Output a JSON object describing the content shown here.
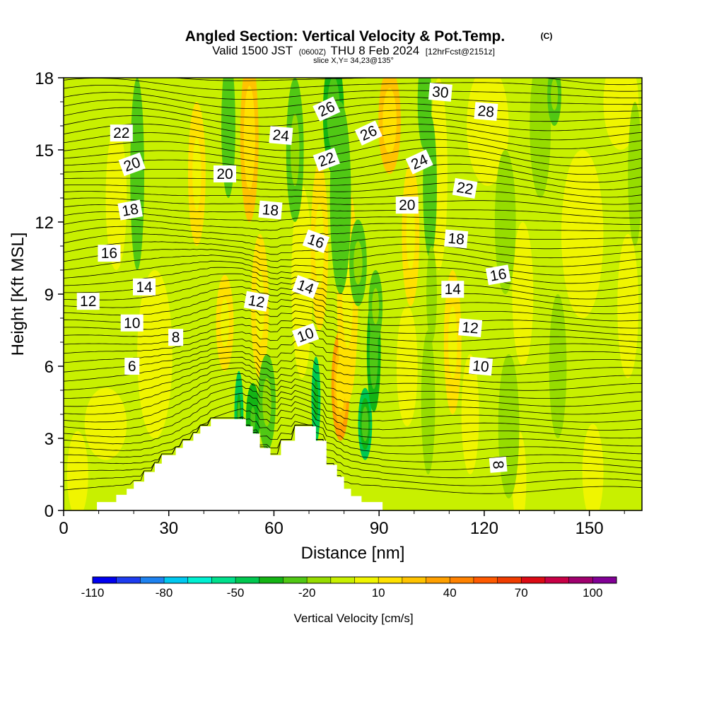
{
  "chart_data": {
    "type": "heatmap",
    "title": "Angled Section: Vertical Velocity & Pot.Temp.",
    "title_mark": "(C)",
    "subtitle": {
      "prefix": "Valid 1500 JST",
      "utc": "(0600Z)",
      "date": "THU 8 Feb 2024",
      "forecast": "[12hrFcst@2151z]"
    },
    "slice_label": "slice X,Y= 34,23@135°",
    "xlabel": "Distance [nm]",
    "ylabel": "Height [Kft MSL]",
    "xlim": [
      0,
      165
    ],
    "ylim": [
      0,
      18
    ],
    "xticks": [
      "0",
      "30",
      "60",
      "90",
      "120",
      "150"
    ],
    "yticks": [
      "0",
      "3",
      "6",
      "9",
      "12",
      "15",
      "18"
    ],
    "xtick_values": [
      0,
      30,
      60,
      90,
      120,
      150
    ],
    "ytick_values": [
      0,
      3,
      6,
      9,
      12,
      15,
      18
    ],
    "colorbar": {
      "label": "Vertical Velocity [cm/s]",
      "min": -110,
      "max": 110,
      "step": 10,
      "tick_labels": [
        "-110",
        "-80",
        "-50",
        "-20",
        "10",
        "40",
        "70",
        "100"
      ],
      "tick_values": [
        -110,
        -80,
        -50,
        -20,
        10,
        40,
        70,
        100
      ],
      "colors": [
        "#0000f0",
        "#1e3cf0",
        "#1e82f0",
        "#00c8f0",
        "#00f0d2",
        "#00e08c",
        "#00c850",
        "#14b414",
        "#50c814",
        "#96dc00",
        "#c8f000",
        "#f0f500",
        "#ffe100",
        "#ffc300",
        "#ffa000",
        "#ff8200",
        "#ff5a00",
        "#f03c00",
        "#dc0a14",
        "#c80046",
        "#a0006e",
        "#820096"
      ]
    },
    "fill_colors": {
      "near_zero": "#c8f000",
      "weak_up": "#f0f500",
      "up": "#ffe100",
      "strong_up": "#ffc300",
      "stronger_up": "#ffa000",
      "weak_down": "#96dc00",
      "down": "#50c814",
      "strong_down": "#14b414",
      "stronger_down": "#00c850",
      "terrain": "#ffffff"
    },
    "updrafts": [
      {
        "x": 4,
        "y": 1.5,
        "sx": 3,
        "sy": 1.8,
        "v": 8
      },
      {
        "x": 12,
        "y": 3.6,
        "sx": 6,
        "sy": 1.5,
        "v": 10
      },
      {
        "x": 15,
        "y": 13,
        "sx": 3,
        "sy": 3,
        "v": 8
      },
      {
        "x": 26,
        "y": 6.5,
        "sx": 5,
        "sy": 3.5,
        "v": 8
      },
      {
        "x": 38,
        "y": 14,
        "sx": 2.5,
        "sy": 3,
        "v": 18
      },
      {
        "x": 46,
        "y": 7.8,
        "sx": 2.5,
        "sy": 2,
        "v": 18
      },
      {
        "x": 53,
        "y": 15.5,
        "sx": 2.6,
        "sy": 3.5,
        "v": 34
      },
      {
        "x": 56,
        "y": 8.5,
        "sx": 2.5,
        "sy": 3,
        "v": 15
      },
      {
        "x": 68,
        "y": 9.5,
        "sx": 3,
        "sy": 4,
        "v": 12
      },
      {
        "x": 73,
        "y": 11,
        "sx": 2.5,
        "sy": 3.5,
        "v": 18
      },
      {
        "x": 79,
        "y": 5.2,
        "sx": 2.6,
        "sy": 2.3,
        "v": 42
      },
      {
        "x": 81,
        "y": 9,
        "sx": 3,
        "sy": 4.5,
        "v": 18
      },
      {
        "x": 93,
        "y": 16.2,
        "sx": 3.2,
        "sy": 2.2,
        "v": 34
      },
      {
        "x": 99,
        "y": 11.5,
        "sx": 2.5,
        "sy": 3,
        "v": 15
      },
      {
        "x": 98,
        "y": 6,
        "sx": 3,
        "sy": 2.5,
        "v": 10
      },
      {
        "x": 107,
        "y": 14,
        "sx": 2.5,
        "sy": 4,
        "v": 14
      },
      {
        "x": 111,
        "y": 7,
        "sx": 2.5,
        "sy": 3,
        "v": 15
      },
      {
        "x": 116,
        "y": 4,
        "sx": 2.5,
        "sy": 2.5,
        "v": 10
      },
      {
        "x": 121,
        "y": 16,
        "sx": 6,
        "sy": 2.5,
        "v": 10
      },
      {
        "x": 130,
        "y": 1.3,
        "sx": 2,
        "sy": 2,
        "v": 8
      },
      {
        "x": 131,
        "y": 9,
        "sx": 3,
        "sy": 3,
        "v": 6
      },
      {
        "x": 148,
        "y": 11.5,
        "sx": 6,
        "sy": 3.5,
        "v": 12
      },
      {
        "x": 151,
        "y": 1.6,
        "sx": 3,
        "sy": 2,
        "v": 10
      },
      {
        "x": 159,
        "y": 17,
        "sx": 5,
        "sy": 2,
        "v": 10
      },
      {
        "x": 161,
        "y": 8.5,
        "sx": 3,
        "sy": 3,
        "v": 8
      }
    ],
    "downdrafts": [
      {
        "x": 21,
        "y": 14,
        "sx": 2,
        "sy": 4,
        "v": -22
      },
      {
        "x": 47,
        "y": 16,
        "sx": 2,
        "sy": 3,
        "v": -22
      },
      {
        "x": 50,
        "y": 4,
        "sx": 1.3,
        "sy": 1.8,
        "v": -48
      },
      {
        "x": 54,
        "y": 3.8,
        "sx": 2,
        "sy": 1.5,
        "v": -38
      },
      {
        "x": 58,
        "y": 4.5,
        "sx": 2.5,
        "sy": 2,
        "v": -20
      },
      {
        "x": 66,
        "y": 15,
        "sx": 2.5,
        "sy": 3,
        "v": -20
      },
      {
        "x": 72,
        "y": 4.6,
        "sx": 1.3,
        "sy": 1.8,
        "v": -55
      },
      {
        "x": 77,
        "y": 16.5,
        "sx": 3,
        "sy": 2.5,
        "v": -35
      },
      {
        "x": 79,
        "y": 13,
        "sx": 3,
        "sy": 4,
        "v": -25
      },
      {
        "x": 84,
        "y": 10.3,
        "sx": 2.5,
        "sy": 1.8,
        "v": -18
      },
      {
        "x": 86,
        "y": 3.6,
        "sx": 2,
        "sy": 1.5,
        "v": -40
      },
      {
        "x": 88.5,
        "y": 6.6,
        "sx": 2,
        "sy": 2.5,
        "v": -30
      },
      {
        "x": 89,
        "y": 8.5,
        "sx": 2,
        "sy": 1.5,
        "v": -20
      },
      {
        "x": 103,
        "y": 17,
        "sx": 2,
        "sy": 2,
        "v": -28
      },
      {
        "x": 104.5,
        "y": 13.5,
        "sx": 2,
        "sy": 3,
        "v": -25
      },
      {
        "x": 105,
        "y": 9,
        "sx": 1.5,
        "sy": 2,
        "v": -12
      },
      {
        "x": 104,
        "y": 4.5,
        "sx": 2,
        "sy": 3,
        "v": -6
      },
      {
        "x": 127,
        "y": 3.5,
        "sx": 3,
        "sy": 3,
        "v": -6
      },
      {
        "x": 126,
        "y": 12,
        "sx": 3,
        "sy": 3,
        "v": -6
      },
      {
        "x": 141,
        "y": 6,
        "sx": 2.5,
        "sy": 3,
        "v": -6
      },
      {
        "x": 136,
        "y": 16,
        "sx": 3,
        "sy": 3,
        "v": -6
      },
      {
        "x": 140,
        "y": 17.3,
        "sx": 2,
        "sy": 1.3,
        "v": -15
      },
      {
        "x": 163,
        "y": 14,
        "sx": 2,
        "sy": 3,
        "v": -6
      }
    ],
    "terrain_profile": [
      [
        0,
        0
      ],
      [
        9.5,
        0
      ],
      [
        9.5,
        0.35
      ],
      [
        15,
        0.35
      ],
      [
        15,
        0.65
      ],
      [
        18,
        0.65
      ],
      [
        18,
        0.9
      ],
      [
        20,
        0.9
      ],
      [
        20,
        1.2
      ],
      [
        23,
        1.2
      ],
      [
        23,
        1.6
      ],
      [
        26,
        1.6
      ],
      [
        26,
        1.95
      ],
      [
        28,
        1.95
      ],
      [
        28,
        2.3
      ],
      [
        32,
        2.3
      ],
      [
        32,
        2.6
      ],
      [
        34,
        2.6
      ],
      [
        34,
        2.9
      ],
      [
        37,
        2.9
      ],
      [
        37,
        3.2
      ],
      [
        39,
        3.2
      ],
      [
        39,
        3.5
      ],
      [
        42,
        3.5
      ],
      [
        42,
        3.8
      ],
      [
        52,
        3.8
      ],
      [
        52,
        3.5
      ],
      [
        54,
        3.5
      ],
      [
        54,
        3.2
      ],
      [
        56,
        3.2
      ],
      [
        56,
        2.6
      ],
      [
        59,
        2.6
      ],
      [
        59,
        2.3
      ],
      [
        62,
        2.3
      ],
      [
        62,
        2.9
      ],
      [
        66,
        2.9
      ],
      [
        66,
        3.5
      ],
      [
        72,
        3.5
      ],
      [
        72,
        2.9
      ],
      [
        75,
        2.9
      ],
      [
        75,
        1.9
      ],
      [
        78,
        1.9
      ],
      [
        78,
        1.4
      ],
      [
        80,
        1.4
      ],
      [
        80,
        0.9
      ],
      [
        82,
        0.9
      ],
      [
        82,
        0.6
      ],
      [
        85,
        0.6
      ],
      [
        85,
        0.35
      ],
      [
        91,
        0.35
      ],
      [
        91,
        0
      ],
      [
        165,
        0
      ]
    ],
    "theta_contour_labels": [
      {
        "text": "30",
        "x": 107.5,
        "y": 17.4,
        "angle": -5
      },
      {
        "text": "28",
        "x": 120.5,
        "y": 16.6,
        "angle": -5
      },
      {
        "text": "26",
        "x": 75,
        "y": 16.7,
        "angle": 25
      },
      {
        "text": "26",
        "x": 87,
        "y": 15.7,
        "angle": 25
      },
      {
        "text": "24",
        "x": 62,
        "y": 15.6,
        "angle": -5
      },
      {
        "text": "24",
        "x": 101.5,
        "y": 14.5,
        "angle": 25
      },
      {
        "text": "22",
        "x": 16.5,
        "y": 15.7,
        "angle": 0
      },
      {
        "text": "22",
        "x": 75,
        "y": 14.6,
        "angle": 20
      },
      {
        "text": "22",
        "x": 114.5,
        "y": 13.4,
        "angle": -10
      },
      {
        "text": "20",
        "x": 19.5,
        "y": 14.4,
        "angle": 20
      },
      {
        "text": "20",
        "x": 46,
        "y": 14,
        "angle": 0
      },
      {
        "text": "20",
        "x": 98,
        "y": 12.7,
        "angle": 0
      },
      {
        "text": "18",
        "x": 19,
        "y": 12.5,
        "angle": 10
      },
      {
        "text": "18",
        "x": 59,
        "y": 12.5,
        "angle": -5
      },
      {
        "text": "18",
        "x": 112,
        "y": 11.3,
        "angle": -5
      },
      {
        "text": "16",
        "x": 13,
        "y": 10.7,
        "angle": 0
      },
      {
        "text": "16",
        "x": 72,
        "y": 11.2,
        "angle": -20
      },
      {
        "text": "16",
        "x": 124,
        "y": 9.8,
        "angle": 10
      },
      {
        "text": "14",
        "x": 23,
        "y": 9.3,
        "angle": 0
      },
      {
        "text": "14",
        "x": 69,
        "y": 9.3,
        "angle": -20
      },
      {
        "text": "14",
        "x": 111,
        "y": 9.2,
        "angle": 0
      },
      {
        "text": "12",
        "x": 7,
        "y": 8.7,
        "angle": 0
      },
      {
        "text": "12",
        "x": 55,
        "y": 8.7,
        "angle": -10
      },
      {
        "text": "12",
        "x": 116,
        "y": 7.6,
        "angle": -5
      },
      {
        "text": "10",
        "x": 19.5,
        "y": 7.8,
        "angle": 0
      },
      {
        "text": "10",
        "x": 69,
        "y": 7.3,
        "angle": 20
      },
      {
        "text": "10",
        "x": 119,
        "y": 6,
        "angle": -5
      },
      {
        "text": "8",
        "x": 32,
        "y": 7.2,
        "angle": 0
      },
      {
        "text": "8",
        "x": 124,
        "y": 1.9,
        "angle": -85
      },
      {
        "text": "6",
        "x": 19.5,
        "y": 6,
        "angle": 0
      }
    ]
  }
}
